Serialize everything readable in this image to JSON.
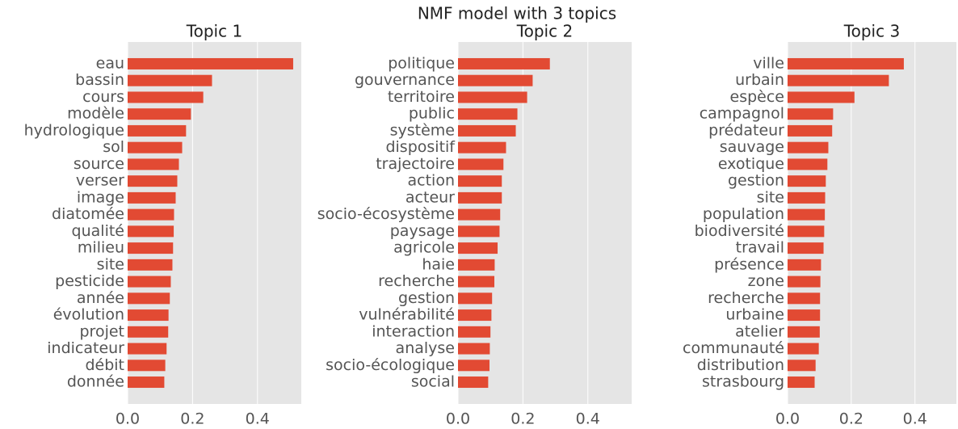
{
  "title": "NMF model with 3 topics",
  "chart_data": [
    {
      "type": "barh",
      "title": "Topic 1",
      "color": "#E24A33",
      "categories": [
        "eau",
        "bassin",
        "cours",
        "modèle",
        "hydrologique",
        "sol",
        "source",
        "verser",
        "image",
        "diatomée",
        "qualité",
        "milieu",
        "site",
        "pesticide",
        "année",
        "évolution",
        "projet",
        "indicateur",
        "débit",
        "donnée"
      ],
      "values": [
        0.51,
        0.26,
        0.233,
        0.195,
        0.18,
        0.168,
        0.158,
        0.153,
        0.148,
        0.143,
        0.142,
        0.14,
        0.138,
        0.133,
        0.13,
        0.126,
        0.125,
        0.12,
        0.116,
        0.113
      ],
      "xlim": [
        0,
        0.535
      ],
      "xticks": [
        {
          "value": 0,
          "label": "0.0"
        },
        0.2,
        0.4
      ],
      "grid": true
    },
    {
      "type": "barh",
      "title": "Topic 2",
      "color": "#E24A33",
      "categories": [
        "politique",
        "gouvernance",
        "territoire",
        "public",
        "système",
        "dispositif",
        "trajectoire",
        "action",
        "acteur",
        "socio-écosystème",
        "paysage",
        "agricole",
        "haie",
        "recherche",
        "gestion",
        "vulnérabilité",
        "interaction",
        "analyse",
        "socio-écologique",
        "social"
      ],
      "values": [
        0.283,
        0.23,
        0.213,
        0.183,
        0.178,
        0.148,
        0.14,
        0.135,
        0.135,
        0.13,
        0.128,
        0.122,
        0.113,
        0.112,
        0.105,
        0.103,
        0.1,
        0.098,
        0.097,
        0.093
      ],
      "xlim": [
        0,
        0.535
      ],
      "xticks": [
        {
          "value": 0,
          "label": "0.0"
        },
        0.2,
        0.4
      ],
      "grid": true
    },
    {
      "type": "barh",
      "title": "Topic 3",
      "color": "#E24A33",
      "categories": [
        "ville",
        "urbain",
        "espèce",
        "campagnol",
        "prédateur",
        "sauvage",
        "exotique",
        "gestion",
        "site",
        "population",
        "biodiversité",
        "travail",
        "présence",
        "zone",
        "recherche",
        "urbaine",
        "atelier",
        "communauté",
        "distribution",
        "strasbourg"
      ],
      "values": [
        0.365,
        0.318,
        0.21,
        0.143,
        0.14,
        0.128,
        0.125,
        0.12,
        0.118,
        0.117,
        0.115,
        0.113,
        0.105,
        0.103,
        0.102,
        0.102,
        0.101,
        0.098,
        0.088,
        0.085
      ],
      "xlim": [
        0,
        0.53
      ],
      "xticks": [
        {
          "value": 0,
          "label": "0.0"
        },
        0.2,
        0.4
      ],
      "grid": true
    }
  ]
}
